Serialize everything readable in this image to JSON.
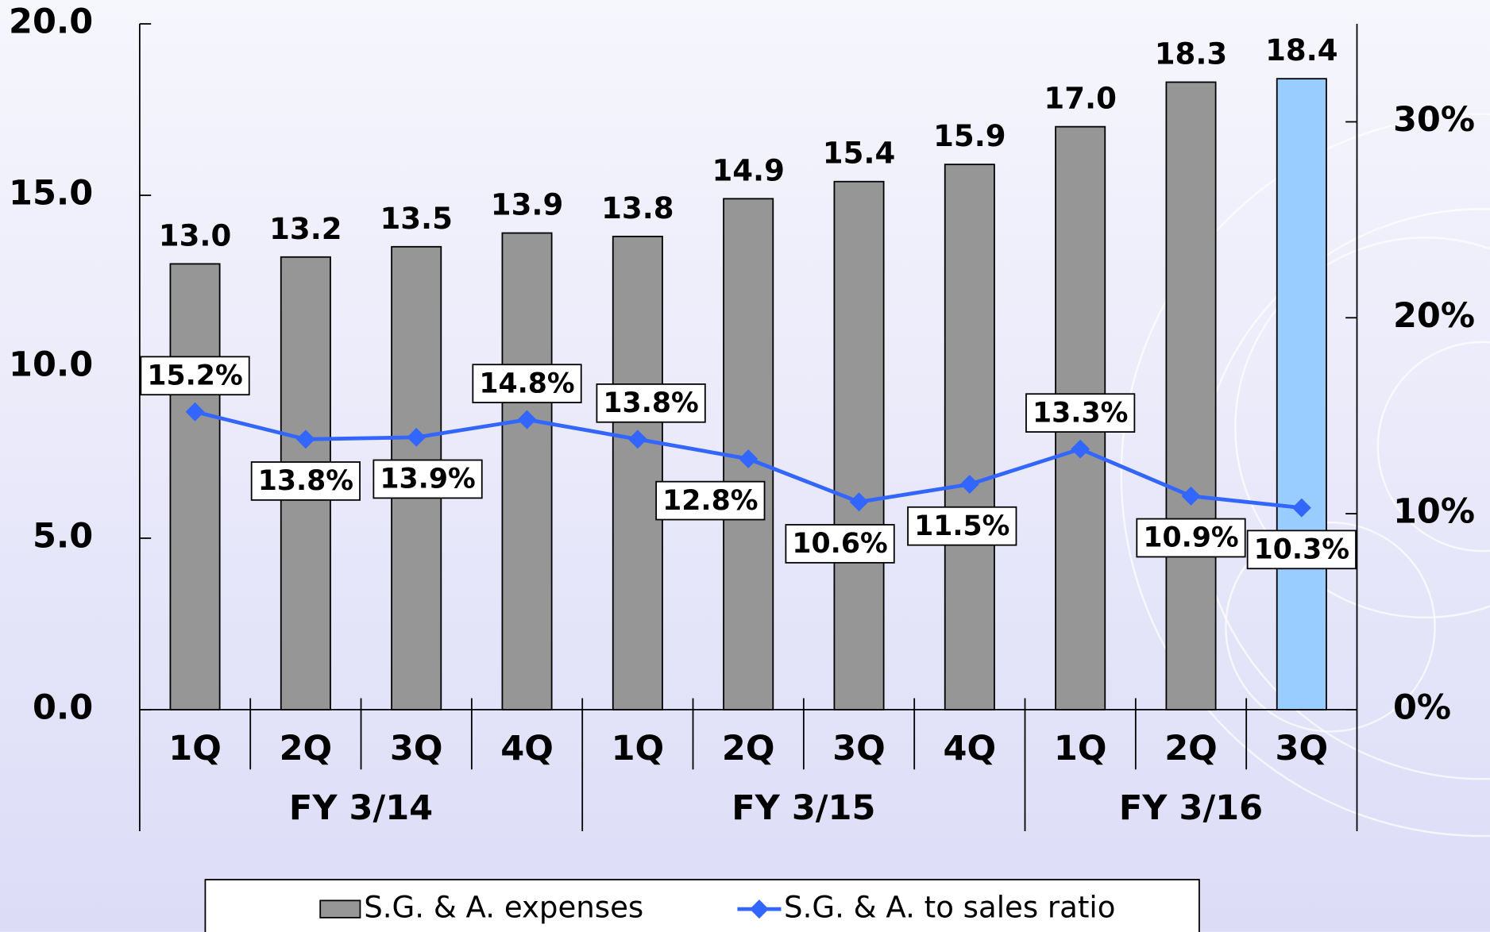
{
  "chart_data": {
    "type": "bar-line",
    "category_groups": [
      {
        "name": "FY 3/14",
        "categories": [
          "1Q",
          "2Q",
          "3Q",
          "4Q"
        ]
      },
      {
        "name": "FY 3/15",
        "categories": [
          "1Q",
          "2Q",
          "3Q",
          "4Q"
        ]
      },
      {
        "name": "FY 3/16",
        "categories": [
          "1Q",
          "2Q",
          "3Q"
        ]
      }
    ],
    "series": [
      {
        "name": "S.G. & A. expenses",
        "type": "bar",
        "color": "#969696",
        "highlight_color": "#99ccff",
        "values": [
          13.0,
          13.2,
          13.5,
          13.9,
          13.8,
          14.9,
          15.4,
          15.9,
          17.0,
          18.3,
          18.4
        ],
        "value_labels": [
          "13.0",
          "13.2",
          "13.5",
          "13.9",
          "13.8",
          "14.9",
          "15.4",
          "15.9",
          "17.0",
          "18.3",
          "18.4"
        ]
      },
      {
        "name": "S.G. & A. to sales ratio",
        "type": "line",
        "axis": "y2",
        "color": "#3366ff",
        "values": [
          15.2,
          13.8,
          13.9,
          14.8,
          13.8,
          12.8,
          10.6,
          11.5,
          13.3,
          10.9,
          10.3
        ],
        "value_labels": [
          "15.2%",
          "13.8%",
          "13.9%",
          "14.8%",
          "13.8%",
          "12.8%",
          "10.6%",
          "11.5%",
          "13.3%",
          "10.9%",
          "10.3%"
        ]
      }
    ],
    "ylim": [
      0,
      20
    ],
    "yticks": [
      {
        "value": 0,
        "label": "0.0"
      },
      {
        "value": 5,
        "label": "5.0"
      },
      {
        "value": 10,
        "label": "10.0"
      },
      {
        "value": 15,
        "label": "15.0"
      },
      {
        "value": 20,
        "label": "20.0"
      }
    ],
    "y2lim": [
      0,
      35
    ],
    "y2ticks": [
      {
        "value": 0,
        "label": "0%"
      },
      {
        "value": 10,
        "label": "10%"
      },
      {
        "value": 20,
        "label": "20%"
      },
      {
        "value": 30,
        "label": "30%"
      }
    ]
  }
}
